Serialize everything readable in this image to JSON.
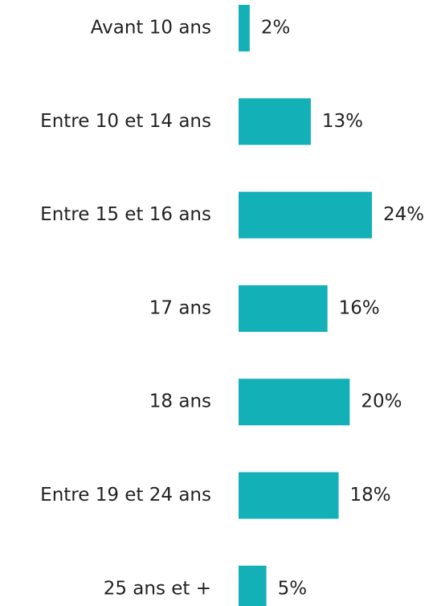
{
  "chart_data": {
    "type": "bar",
    "orientation": "horizontal",
    "categories": [
      "Avant 10 ans",
      "Entre 10 et 14 ans",
      "Entre 15 et 16 ans",
      "17 ans",
      "18 ans",
      "Entre 19 et 24 ans",
      "25 ans et +"
    ],
    "values": [
      2,
      13,
      24,
      16,
      20,
      18,
      5
    ],
    "value_labels": [
      "2%",
      "13%",
      "24%",
      "16%",
      "20%",
      "18%",
      "5%"
    ],
    "color": "#14b0b8"
  }
}
